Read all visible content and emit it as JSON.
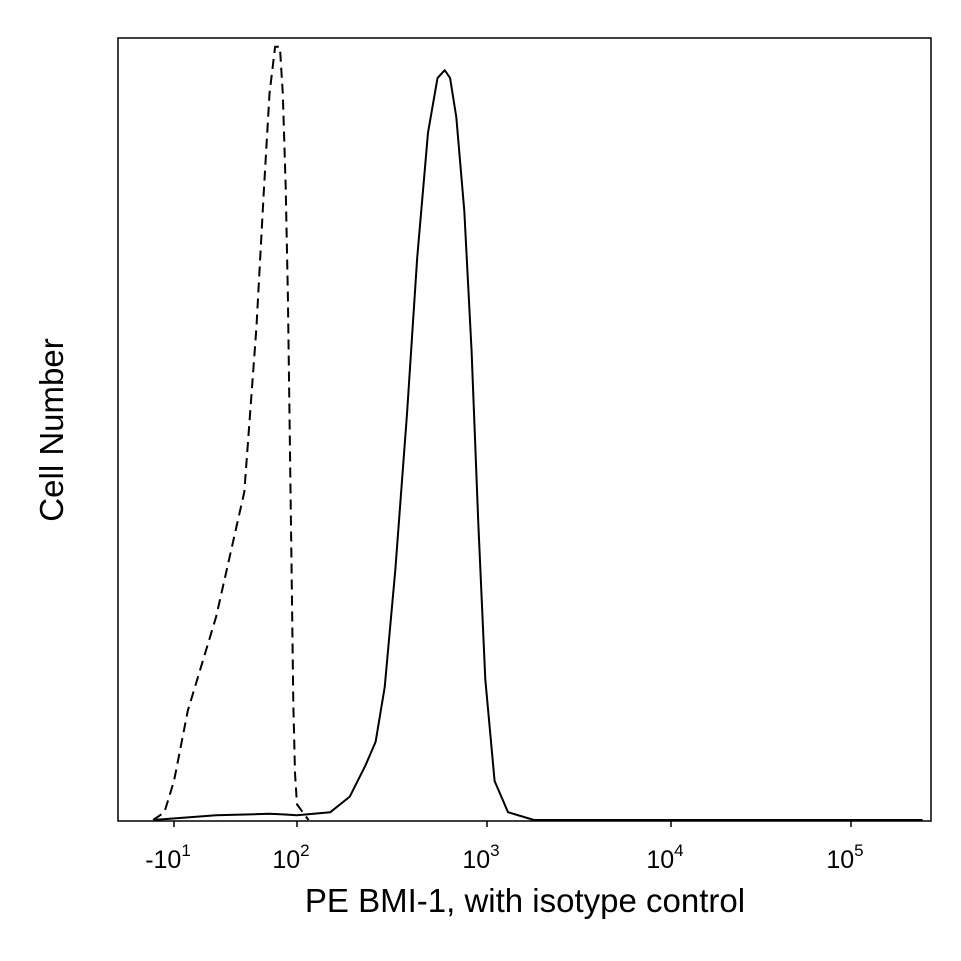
{
  "chart_data": {
    "type": "line",
    "title": "",
    "xlabel": "PE BMI-1, with isotype control",
    "ylabel": "Cell Number",
    "x_scale": "biexponential (logicle)",
    "y_ticks": "none",
    "grid": false,
    "legend": "none",
    "x_ticks": [
      {
        "base": "-10",
        "exp": "1",
        "value": -10
      },
      {
        "base": "10",
        "exp": "2",
        "value": 100
      },
      {
        "base": "10",
        "exp": "3",
        "value": 1000
      },
      {
        "base": "10",
        "exp": "4",
        "value": 10000
      },
      {
        "base": "10",
        "exp": "5",
        "value": 100000
      }
    ],
    "y_range": [
      0,
      1
    ],
    "series": [
      {
        "style": "dashed",
        "color": "#000000",
        "points": [
          [
            -35,
            0.0
          ],
          [
            -18,
            0.01
          ],
          [
            -10,
            0.05
          ],
          [
            -4,
            0.14
          ],
          [
            0,
            0.26
          ],
          [
            4,
            0.42
          ],
          [
            9,
            0.63
          ],
          [
            14,
            0.8
          ],
          [
            20,
            0.93
          ],
          [
            28,
            0.99
          ],
          [
            37,
            0.99
          ],
          [
            44,
            0.93
          ],
          [
            52,
            0.81
          ],
          [
            59,
            0.67
          ],
          [
            66,
            0.49
          ],
          [
            74,
            0.3
          ],
          [
            81,
            0.15
          ],
          [
            89,
            0.06
          ],
          [
            100,
            0.02
          ],
          [
            115,
            0.0
          ]
        ]
      },
      {
        "style": "solid",
        "color": "#000000",
        "points": [
          [
            -35,
            0.0
          ],
          [
            0,
            0.006
          ],
          [
            20,
            0.008
          ],
          [
            50,
            0.007
          ],
          [
            100,
            0.006
          ],
          [
            150,
            0.01
          ],
          [
            190,
            0.03
          ],
          [
            230,
            0.07
          ],
          [
            260,
            0.1
          ],
          [
            290,
            0.17
          ],
          [
            330,
            0.32
          ],
          [
            380,
            0.52
          ],
          [
            430,
            0.72
          ],
          [
            490,
            0.88
          ],
          [
            550,
            0.95
          ],
          [
            600,
            0.96
          ],
          [
            640,
            0.95
          ],
          [
            690,
            0.9
          ],
          [
            760,
            0.78
          ],
          [
            830,
            0.6
          ],
          [
            900,
            0.38
          ],
          [
            980,
            0.18
          ],
          [
            1100,
            0.05
          ],
          [
            1300,
            0.01
          ],
          [
            1800,
            0.0
          ],
          [
            100000,
            0.0
          ],
          [
            250000,
            0.0
          ]
        ]
      }
    ]
  }
}
